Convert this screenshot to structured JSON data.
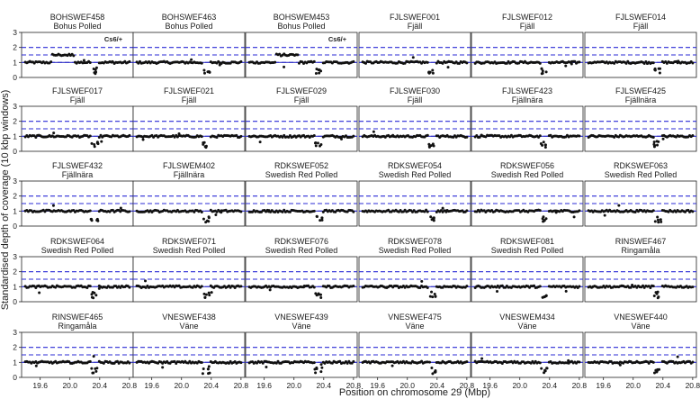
{
  "chart_data": {
    "type": "scatter",
    "layout": "small-multiples grid, 5 rows x 6 columns",
    "ylabel": "Standardised depth of coverage (10 kbp windows)",
    "xlabel": "Position on chromosome 29 (Mbp)",
    "xlim": [
      19.35,
      20.85
    ],
    "ylim": [
      0,
      3
    ],
    "x_ticks": [
      19.6,
      20.0,
      20.4,
      20.8
    ],
    "y_ticks": [
      0,
      1,
      2,
      3
    ],
    "x_tick_labels": [
      "19.6",
      "20.0",
      "20.4",
      "20.8"
    ],
    "y_tick_labels": [
      "0",
      "1",
      "2",
      "3"
    ],
    "reference_lines": [
      1.0,
      1.5,
      2.0
    ],
    "reference_line_color": "#2b2bd6",
    "reference_line_style": "dashed",
    "point_color": "#111111",
    "series_color": "#3a3ac8",
    "grid": false,
    "panels": [
      {
        "id": "BOHSWEF458",
        "breed": "Bohus Polled",
        "annotation": "Cs6/+",
        "duplication": [
          19.75,
          20.05
        ]
      },
      {
        "id": "BOHSWEF463",
        "breed": "Bohus Polled",
        "annotation": "",
        "duplication": null
      },
      {
        "id": "BOHSWEM453",
        "breed": "Bohus Polled",
        "annotation": "Cs6/+",
        "duplication": [
          19.75,
          20.05
        ]
      },
      {
        "id": "FJLSWEF001",
        "breed": "Fjäll",
        "annotation": "",
        "duplication": null
      },
      {
        "id": "FJLSWEF012",
        "breed": "Fjäll",
        "annotation": "",
        "duplication": null
      },
      {
        "id": "FJLSWEF014",
        "breed": "Fjäll",
        "annotation": "",
        "duplication": null
      },
      {
        "id": "FJLSWEF017",
        "breed": "Fjäll",
        "annotation": "",
        "duplication": null
      },
      {
        "id": "FJLSWEF021",
        "breed": "Fjäll",
        "annotation": "",
        "duplication": null
      },
      {
        "id": "FJLSWEF029",
        "breed": "Fjäll",
        "annotation": "",
        "duplication": null
      },
      {
        "id": "FJLSWEF030",
        "breed": "Fjäll",
        "annotation": "",
        "duplication": null
      },
      {
        "id": "FJLSWEF423",
        "breed": "Fjällnära",
        "annotation": "",
        "duplication": null
      },
      {
        "id": "FJLSWEF425",
        "breed": "Fjällnära",
        "annotation": "",
        "duplication": null
      },
      {
        "id": "FJLSWEF432",
        "breed": "Fjällnära",
        "annotation": "",
        "duplication": null
      },
      {
        "id": "FJLSWEM402",
        "breed": "Fjällnära",
        "annotation": "",
        "duplication": null
      },
      {
        "id": "RDKSWEF052",
        "breed": "Swedish Red Polled",
        "annotation": "",
        "duplication": null
      },
      {
        "id": "RDKSWEF054",
        "breed": "Swedish Red Polled",
        "annotation": "",
        "duplication": null
      },
      {
        "id": "RDKSWEF056",
        "breed": "Swedish Red Polled",
        "annotation": "",
        "duplication": null
      },
      {
        "id": "RDKSWEF063",
        "breed": "Swedish Red Polled",
        "annotation": "",
        "duplication": null
      },
      {
        "id": "RDKSWEF064",
        "breed": "Swedish Red Polled",
        "annotation": "",
        "duplication": null
      },
      {
        "id": "RDKSWEF071",
        "breed": "Swedish Red Polled",
        "annotation": "",
        "duplication": null
      },
      {
        "id": "RDKSWEF076",
        "breed": "Swedish Red Polled",
        "annotation": "",
        "duplication": null
      },
      {
        "id": "RDKSWEF078",
        "breed": "Swedish Red Polled",
        "annotation": "",
        "duplication": null
      },
      {
        "id": "RDKSWEF081",
        "breed": "Swedish Red Polled",
        "annotation": "",
        "duplication": null
      },
      {
        "id": "RINSWEF467",
        "breed": "Ringamåla",
        "annotation": "",
        "duplication": null
      },
      {
        "id": "RINSWEF465",
        "breed": "Ringamåla",
        "annotation": "",
        "duplication": null
      },
      {
        "id": "VNESWEF438",
        "breed": "Väne",
        "annotation": "",
        "duplication": null
      },
      {
        "id": "VNESWEF439",
        "breed": "Väne",
        "annotation": "",
        "duplication": null
      },
      {
        "id": "VNESWEF475",
        "breed": "Väne",
        "annotation": "",
        "duplication": null
      },
      {
        "id": "VNESWEM434",
        "breed": "Väne",
        "annotation": "",
        "duplication": null
      },
      {
        "id": "VNESWEF440",
        "breed": "Väne",
        "annotation": "",
        "duplication": null
      }
    ],
    "common_features": {
      "baseline_depth": 1.0,
      "deletion_region_x": [
        20.28,
        20.38
      ],
      "deletion_region_depth": [
        0.25,
        0.65
      ]
    }
  }
}
